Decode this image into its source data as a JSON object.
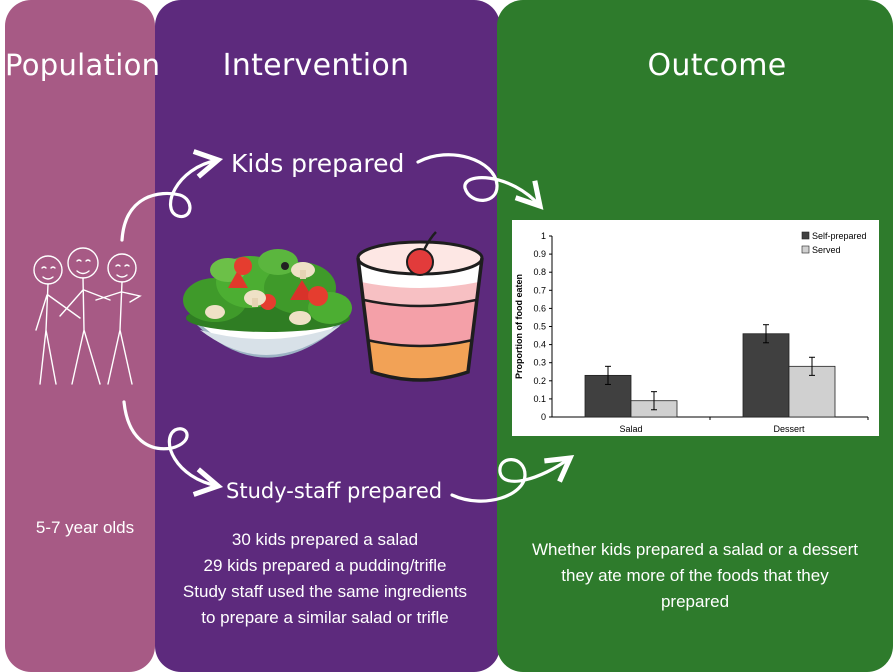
{
  "panels": {
    "population": {
      "title": "Population",
      "description": "5-7 year olds"
    },
    "intervention": {
      "title": "Intervention",
      "kids_label": "Kids prepared",
      "staff_label": "Study-staff prepared",
      "details": [
        "30 kids prepared a salad",
        "29 kids prepared a pudding/trifle",
        "Study staff used the same ingredients",
        "to prepare a similar salad or trifle"
      ]
    },
    "outcome": {
      "title": "Outcome",
      "summary": [
        "Whether kids prepared a salad or a dessert",
        "they ate more of the foods that they",
        "prepared"
      ]
    }
  },
  "colors": {
    "population": "#a75a85",
    "intervention": "#5d2a7d",
    "outcome": "#2e7b2c",
    "self_prepared": "#404040",
    "served": "#d0d0d0"
  },
  "icons": [
    "stick-figures-illustration",
    "salad-bowl-illustration",
    "trifle-cup-illustration"
  ],
  "chart_data": {
    "type": "bar",
    "categories": [
      "Salad",
      "Dessert"
    ],
    "series": [
      {
        "name": "Self-prepared",
        "values": [
          0.23,
          0.46
        ],
        "errors": [
          0.05,
          0.05
        ]
      },
      {
        "name": "Served",
        "values": [
          0.09,
          0.28
        ],
        "errors": [
          0.05,
          0.05
        ]
      }
    ],
    "ylabel": "Proportion of food eaten",
    "ylim": [
      0,
      1
    ],
    "yticks": [
      "0",
      "0.1",
      "0.2",
      "0.3",
      "0.4",
      "0.5",
      "0.6",
      "0.7",
      "0.8",
      "0.9",
      "1"
    ],
    "legend_position": "top-right",
    "grid": false
  }
}
